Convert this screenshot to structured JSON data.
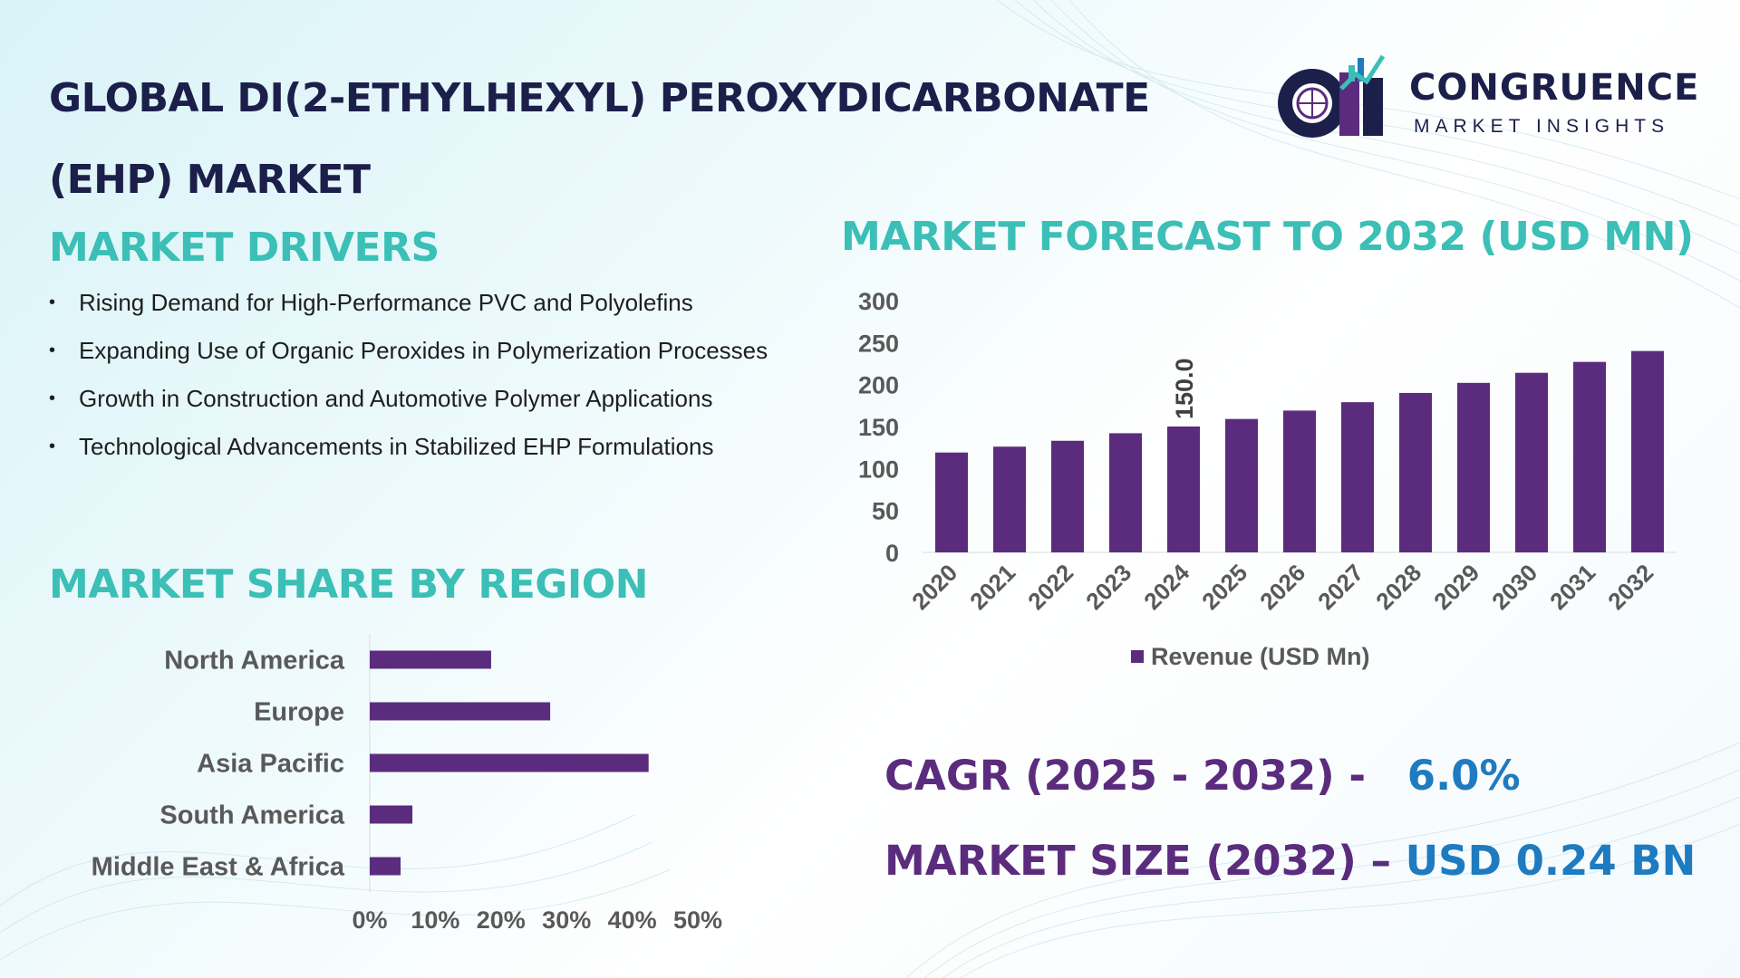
{
  "title": "GLOBAL DI(2-ETHYLHEXYL) PEROXYDICARBONATE (EHP) MARKET",
  "logo": {
    "mark": "CM",
    "name": "CONGRUENCE",
    "tagline": "MARKET INSIGHTS",
    "icon": "globe-bar-chart-logo-icon"
  },
  "drivers": {
    "heading": "MARKET DRIVERS",
    "items": [
      "Rising Demand for High-Performance PVC and Polyolefins",
      "Expanding Use of Organic Peroxides in Polymerization Processes",
      "Growth in Construction and Automotive Polymer Applications",
      "Technological Advancements in Stabilized EHP Formulations"
    ]
  },
  "region": {
    "heading": "MARKET SHARE BY REGION"
  },
  "forecast": {
    "heading": "MARKET FORECAST TO 2032 (USD MN)"
  },
  "stats": {
    "cagr_label": "CAGR (2025 - 2032) -",
    "cagr_value": "6.0%",
    "size_label": "MARKET SIZE (2032) –",
    "size_value": "USD 0.24 BN"
  },
  "colors": {
    "bar": "#5b2c7d",
    "heading_teal": "#3bbfb6",
    "title_navy": "#1b1f4a",
    "stat_label": "#5b2c7d",
    "stat_value": "#1f7bbf"
  },
  "chart_data": [
    {
      "type": "bar",
      "title": "MARKET FORECAST TO 2032 (USD MN)",
      "categories": [
        "2020",
        "2021",
        "2022",
        "2023",
        "2024",
        "2025",
        "2026",
        "2027",
        "2028",
        "2029",
        "2030",
        "2031",
        "2032"
      ],
      "series": [
        {
          "name": "Revenue (USD Mn)",
          "values": [
            119,
            126,
            133,
            142,
            150,
            159,
            169,
            179,
            190,
            202,
            214,
            227,
            240
          ]
        }
      ],
      "data_labels": [
        {
          "category": "2024",
          "label": "150.0"
        }
      ],
      "yticks": [
        "0",
        "50",
        "100",
        "150",
        "200",
        "250",
        "300"
      ],
      "ylim": [
        0,
        300
      ],
      "grid": false,
      "legend": "bottom"
    },
    {
      "type": "bar",
      "orientation": "horizontal",
      "title": "MARKET SHARE BY REGION",
      "categories": [
        "North America",
        "Europe",
        "Asia Pacific",
        "South America",
        "Middle East & Africa"
      ],
      "values": [
        18.5,
        27.5,
        42.5,
        6.5,
        4.7
      ],
      "xticks": [
        "0%",
        "10%",
        "20%",
        "30%",
        "40%",
        "50%"
      ],
      "xlim": [
        0,
        50
      ],
      "grid": false
    }
  ]
}
